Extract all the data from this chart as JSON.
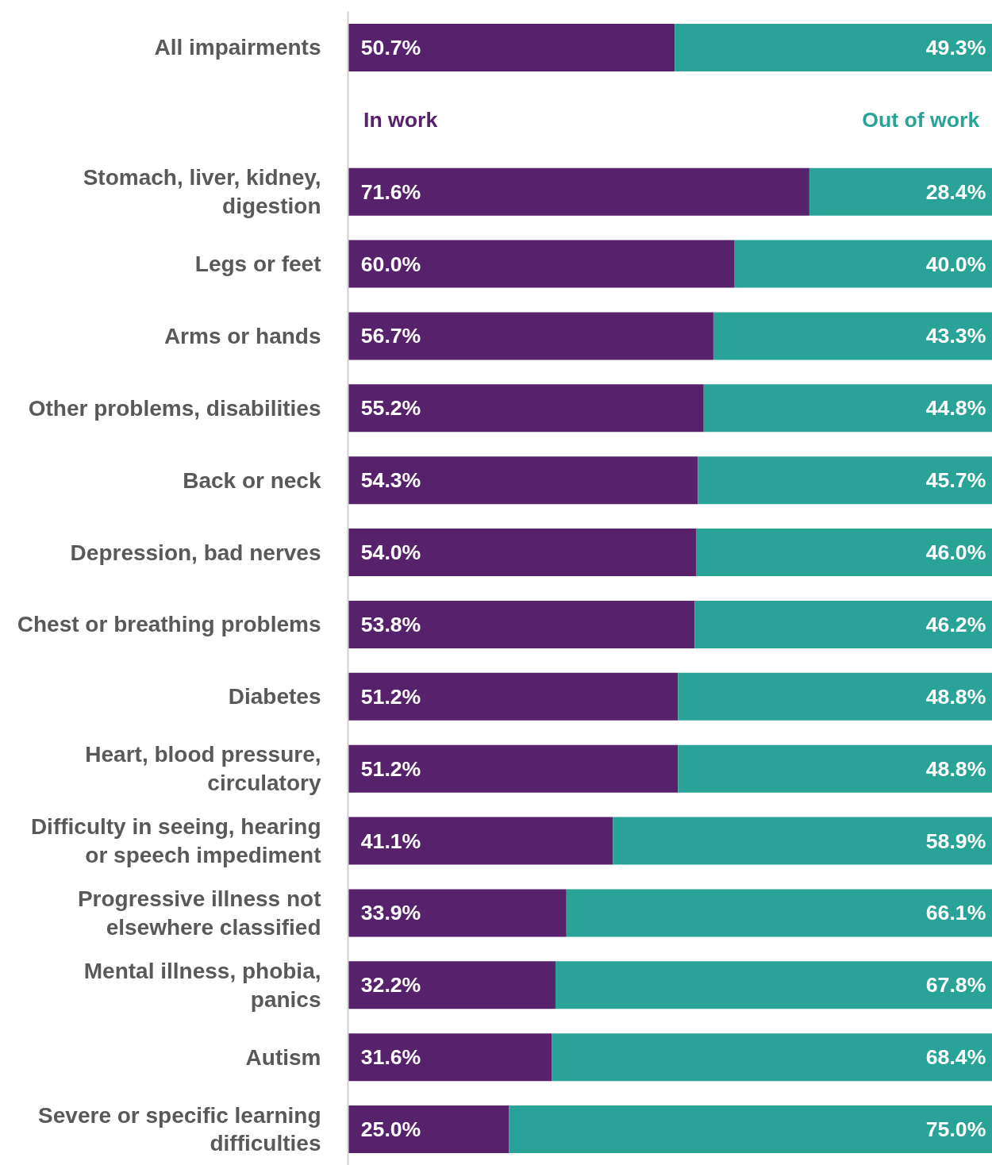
{
  "chart_data": {
    "type": "bar",
    "orientation": "horizontal",
    "stacked": true,
    "tick_labels": "y",
    "categories": [
      "All impairments",
      null,
      "Stomach, liver, kidney,\ndigestion",
      "Legs or feet",
      "Arms or hands",
      "Other problems, disabilities",
      "Back or neck",
      "Depression, bad nerves",
      "Chest or breathing problems",
      "Diabetes",
      "Heart, blood pressure,\ncirculatory",
      "Difficulty in seeing, hearing\nor speech impediment",
      "Progressive illness not\nelsewhere classified",
      "Mental illness, phobia,\npanics",
      "Autism",
      "Severe or specific learning\ndifficulties"
    ],
    "series": [
      {
        "name": "In work",
        "color": "#58216b",
        "values": [
          50.7,
          null,
          71.6,
          60.0,
          56.7,
          55.2,
          54.3,
          54.0,
          53.8,
          51.2,
          51.2,
          41.1,
          33.9,
          32.2,
          31.6,
          25.0
        ],
        "value_labels": [
          "50.7%",
          null,
          "71.6%",
          "60.0%",
          "56.7%",
          "55.2%",
          "54.3%",
          "54.0%",
          "53.8%",
          "51.2%",
          "51.2%",
          "41.1%",
          "33.9%",
          "32.2%",
          "31.6%",
          "25.0%"
        ]
      },
      {
        "name": "Out of work",
        "color": "#29a398",
        "values": [
          49.3,
          null,
          28.4,
          40.0,
          43.3,
          44.8,
          45.7,
          46.0,
          46.2,
          48.8,
          48.8,
          58.9,
          66.1,
          67.8,
          68.4,
          75.0
        ],
        "value_labels": [
          "49.3%",
          null,
          "28.4%",
          "40.0%",
          "43.3%",
          "44.8%",
          "45.7%",
          "46.0%",
          "46.2%",
          "48.8%",
          "48.8%",
          "58.9%",
          "66.1%",
          "67.8%",
          "68.4%",
          "75.0%"
        ]
      }
    ]
  }
}
